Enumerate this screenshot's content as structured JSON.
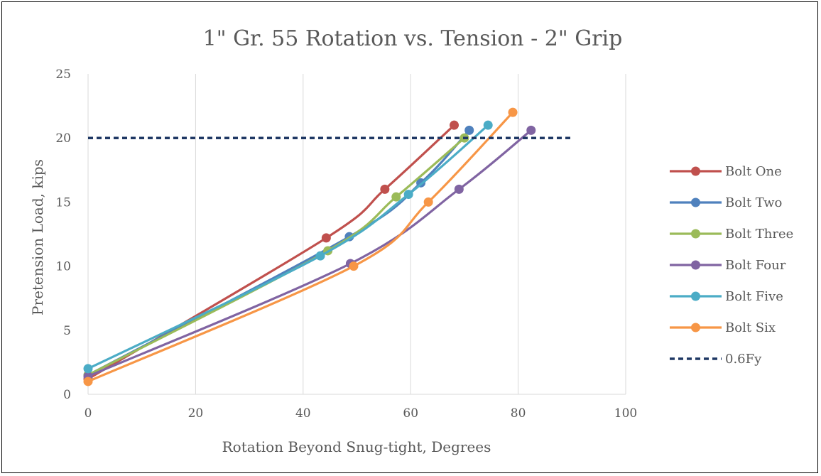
{
  "chart_data": {
    "type": "line",
    "title": "1\" Gr. 55 Rotation vs. Tension - 2\" Grip",
    "xlabel": "Rotation Beyond Snug-tight, Degrees",
    "ylabel": "Pretension Load, kips",
    "xlim": [
      0,
      100
    ],
    "ylim": [
      0,
      25
    ],
    "xticks": [
      0,
      20,
      40,
      60,
      80,
      100
    ],
    "yticks": [
      0,
      5,
      10,
      15,
      20,
      25
    ],
    "grid": "vertical",
    "legend_position": "right",
    "series": [
      {
        "name": "Bolt One",
        "color": "#c0504d",
        "marker": "circle",
        "smooth": true,
        "points": [
          [
            0,
            1.2
          ],
          [
            44.3,
            12.2
          ],
          [
            55.2,
            16.0
          ],
          [
            68.1,
            21.0
          ]
        ]
      },
      {
        "name": "Bolt Two",
        "color": "#4f81bd",
        "marker": "circle",
        "smooth": true,
        "points": [
          [
            0,
            1.5
          ],
          [
            48.6,
            12.3
          ],
          [
            61.9,
            16.5
          ],
          [
            70.9,
            20.6
          ]
        ]
      },
      {
        "name": "Bolt Three",
        "color": "#9bbb59",
        "marker": "circle",
        "smooth": true,
        "points": [
          [
            0,
            1.5
          ],
          [
            44.6,
            11.2
          ],
          [
            57.3,
            15.4
          ],
          [
            70.0,
            20.0
          ]
        ]
      },
      {
        "name": "Bolt Four",
        "color": "#8064a2",
        "marker": "circle",
        "smooth": true,
        "points": [
          [
            0,
            1.4
          ],
          [
            48.8,
            10.2
          ],
          [
            69.0,
            16.0
          ],
          [
            82.4,
            20.6
          ]
        ]
      },
      {
        "name": "Bolt Five",
        "color": "#4bacc6",
        "marker": "circle",
        "smooth": true,
        "points": [
          [
            0,
            2.0
          ],
          [
            43.2,
            10.8
          ],
          [
            59.6,
            15.6
          ],
          [
            74.4,
            21.0
          ]
        ]
      },
      {
        "name": "Bolt Six",
        "color": "#f79646",
        "marker": "circle",
        "smooth": true,
        "points": [
          [
            0,
            1.0
          ],
          [
            49.4,
            10.0
          ],
          [
            63.3,
            15.0
          ],
          [
            79.0,
            22.0
          ]
        ]
      },
      {
        "name": "0.6Fy",
        "color": "#1f3864",
        "marker": "none",
        "dash": true,
        "smooth": false,
        "points": [
          [
            0,
            20
          ],
          [
            90,
            20
          ]
        ]
      }
    ]
  }
}
